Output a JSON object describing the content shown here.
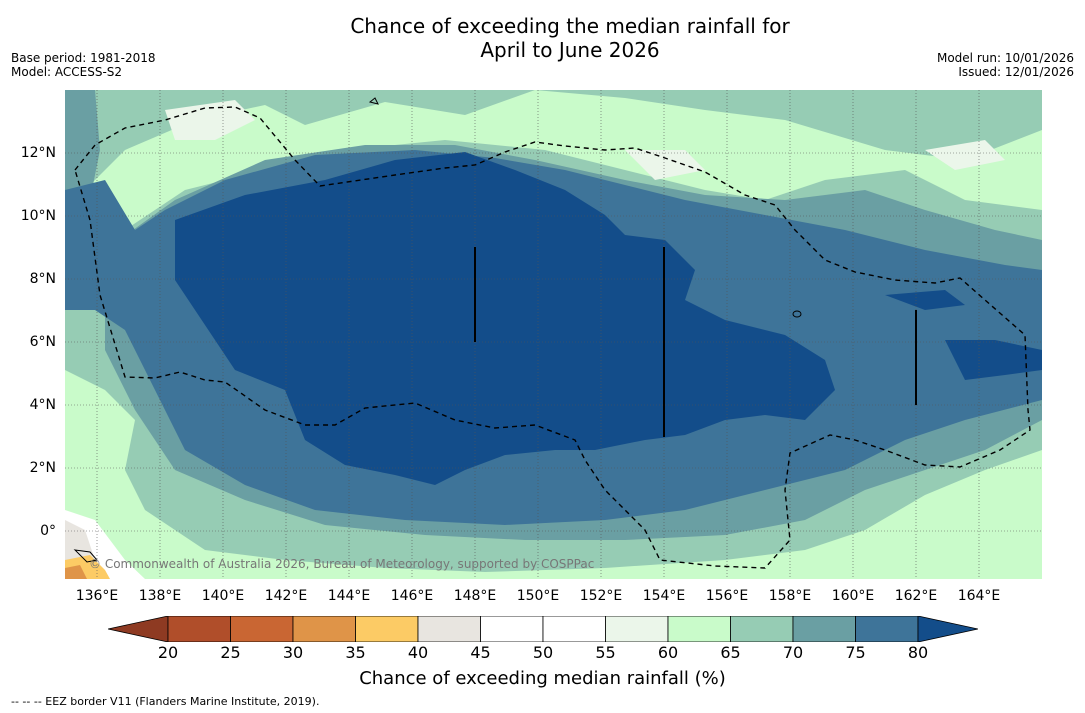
{
  "title": {
    "line1": "Chance of exceeding the median rainfall for",
    "line2": "April to June 2026"
  },
  "meta": {
    "base_period": "Base period: 1981-2018",
    "model": "Model: ACCESS-S2",
    "model_run": "Model run: 10/01/2026",
    "issued": "Issued: 12/01/2026"
  },
  "map": {
    "lat_labels": [
      "12°N",
      "10°N",
      "8°N",
      "6°N",
      "4°N",
      "2°N",
      "0°"
    ],
    "lon_labels": [
      "136°E",
      "138°E",
      "140°E",
      "142°E",
      "144°E",
      "146°E",
      "148°E",
      "150°E",
      "152°E",
      "154°E",
      "156°E",
      "158°E",
      "160°E",
      "162°E",
      "164°E"
    ],
    "copyright": "© Commonwealth of Australia 2026, Bureau of Meteorology, supported by COSPPac"
  },
  "colorbar": {
    "ticks": [
      "20",
      "25",
      "30",
      "35",
      "40",
      "45",
      "50",
      "55",
      "60",
      "65",
      "70",
      "75",
      "80"
    ],
    "colors": [
      "#8e3a22",
      "#b04e2a",
      "#c96633",
      "#df9448",
      "#fccb65",
      "#e8e5e0",
      "#ffffff",
      "#ffffff",
      "#ebf6ea",
      "#c9fbca",
      "#96ccb4",
      "#6a9fa3",
      "#3e7499",
      "#134d8a"
    ],
    "title": "Chance of exceeding median rainfall (%)"
  },
  "legend": {
    "eez": "--  --  -- EEZ border V11 (Flanders Marine Institute, 2019)."
  }
}
